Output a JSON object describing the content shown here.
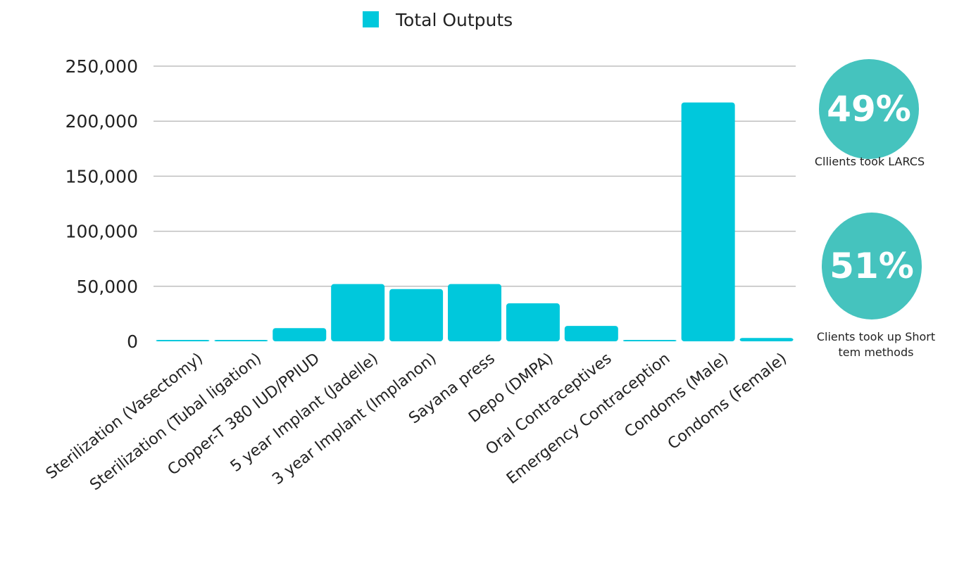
{
  "chart_data": {
    "type": "bar",
    "title": "",
    "xlabel": "",
    "ylabel": "",
    "legend": {
      "position": "top",
      "entries": [
        "Total Outputs"
      ]
    },
    "categories": [
      "Sterilization (Vasectomy)",
      "Sterilization (Tubal ligation)",
      "Copper-T 380 IUD/PPIUD",
      "5 year Implant (Jadelle)",
      "3 year Implant (Implanon)",
      "Sayana press",
      "Depo (DMPA)",
      "Oral Contraceptives",
      "Emergency Contraception",
      "Condoms (Male)",
      "Condoms (Female)"
    ],
    "series": [
      {
        "name": "Total Outputs",
        "values": [
          500,
          800,
          12000,
          52000,
          47500,
          52000,
          34500,
          14000,
          500,
          217000,
          3000
        ]
      }
    ],
    "ylim": [
      0,
      250000
    ],
    "yticks": [
      0,
      50000,
      100000,
      150000,
      200000,
      250000
    ],
    "ytick_labels": [
      "0",
      "50,000",
      "100,000",
      "150,000",
      "200,000",
      "250,000"
    ],
    "grid": true,
    "colors": {
      "bar": "#00C8DC",
      "grid": "#BFBFBF",
      "text": "#222222"
    }
  },
  "stats": [
    {
      "value": "49%",
      "caption_lines": [
        "Cllients took LARCS"
      ],
      "color": "#45C3BE"
    },
    {
      "value": "51%",
      "caption_lines": [
        "Clients  took up Short",
        "tem methods"
      ],
      "color": "#45C3BE"
    }
  ]
}
